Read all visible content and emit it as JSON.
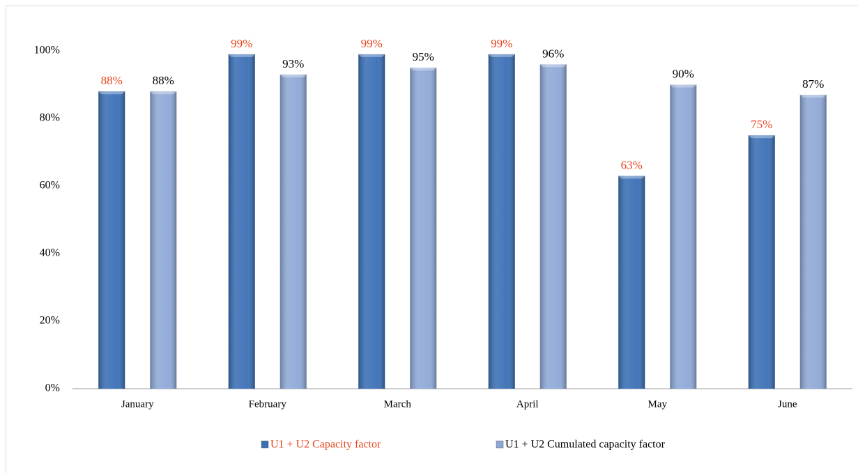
{
  "chart_data": {
    "type": "bar",
    "categories": [
      "January",
      "February",
      "March",
      "April",
      "May",
      "June"
    ],
    "series": [
      {
        "name": "U1 + U2 Capacity factor",
        "color": "#3a6fb6",
        "label_color": "#e8451e",
        "values": [
          88,
          99,
          99,
          99,
          63,
          75
        ],
        "value_labels": [
          "88%",
          "99%",
          "99%",
          "99%",
          "63%",
          "75%"
        ]
      },
      {
        "name": "U1 + U2 Cumulated capacity factor",
        "color": "#8ea8d6",
        "label_color": "#000000",
        "values": [
          88,
          93,
          95,
          96,
          90,
          87
        ],
        "value_labels": [
          "88%",
          "93%",
          "95%",
          "96%",
          "90%",
          "87%"
        ]
      }
    ],
    "ylim": [
      0,
      100
    ],
    "yticks": [
      {
        "value": 0,
        "label": "0%"
      },
      {
        "value": 20,
        "label": "20%"
      },
      {
        "value": 40,
        "label": "40%"
      },
      {
        "value": 60,
        "label": "60%"
      },
      {
        "value": 80,
        "label": "80%"
      },
      {
        "value": 100,
        "label": "100%"
      }
    ],
    "grid": false,
    "legend": "bottom"
  }
}
